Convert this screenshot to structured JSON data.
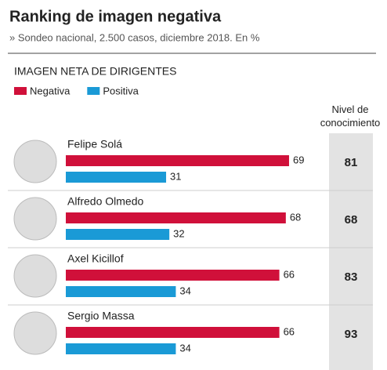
{
  "chart_data": {
    "type": "bar",
    "title": "Ranking de imagen negativa",
    "subtitle": "» Sondeo nacional, 2.500 casos, diciembre 2018. En %",
    "section_title": "IMAGEN NETA DE DIRIGENTES",
    "categories": [
      "Felipe Solá",
      "Alfredo Olmedo",
      "Axel Kicillof",
      "Sergio Massa"
    ],
    "series": [
      {
        "name": "Negativa",
        "color": "#d0103a",
        "values": [
          69,
          68,
          66,
          66
        ]
      },
      {
        "name": "Positiva",
        "color": "#1a9ad6",
        "values": [
          31,
          32,
          34,
          34
        ]
      }
    ],
    "knowledge": {
      "label": "Nivel de conocimiento",
      "values": [
        81,
        68,
        83,
        93
      ]
    }
  }
}
